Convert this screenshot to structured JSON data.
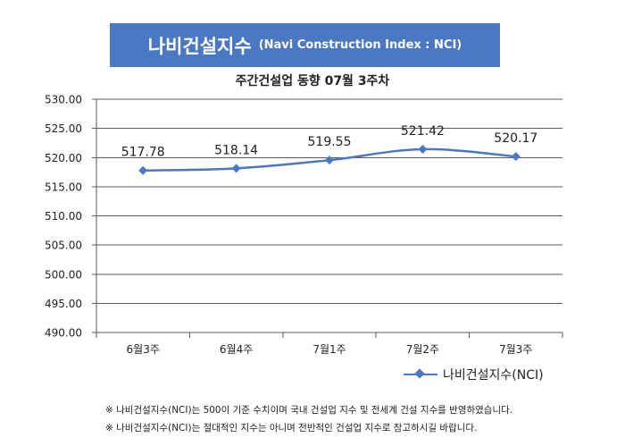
{
  "header": {
    "title_main": "나비건설지수",
    "title_sub": "(Navi Construction Index : NCI)",
    "subtitle": "주간건설업 동향 07월 3주차"
  },
  "chart_data": {
    "type": "line",
    "categories": [
      "6월3주",
      "6월4주",
      "7월1주",
      "7월2주",
      "7월3주"
    ],
    "series": [
      {
        "name": "나비건설지수(NCI)",
        "values": [
          517.78,
          518.14,
          519.55,
          521.42,
          520.17
        ]
      }
    ],
    "data_labels": [
      "517.78",
      "518.14",
      "519.55",
      "521.42",
      "520.17"
    ],
    "ylim": [
      490,
      530
    ],
    "yticks": [
      490,
      495,
      500,
      505,
      510,
      515,
      520,
      525,
      530
    ],
    "ytick_labels": [
      "490.00",
      "495.00",
      "500.00",
      "505.00",
      "510.00",
      "515.00",
      "520.00",
      "525.00",
      "530.00"
    ],
    "grid": true,
    "legend_position": "bottom-right",
    "xlabel": "",
    "ylabel": "",
    "colors": {
      "line": "#4a78c2",
      "banner": "#4a78c2"
    }
  },
  "notes": [
    "※ 나비건설지수(NCI)는 500이 기준 수치이며 국내 건설업 지수 및 전세계 건설 지수를 반영하였습니다.",
    "※ 나비건설지수(NCI)는 절대적인 지수는 아니며 전반적인 건설업 지수로 참고하시길 바랍니다."
  ]
}
